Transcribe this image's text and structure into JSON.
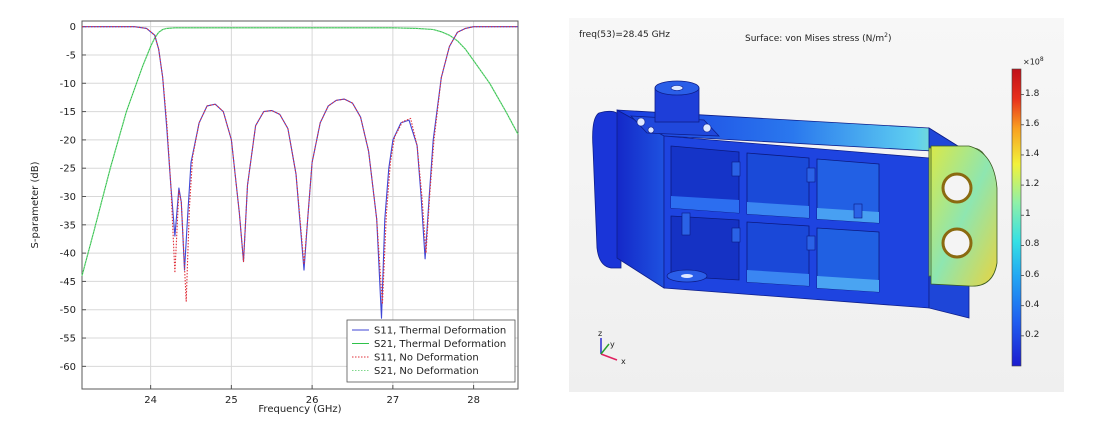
{
  "chart_data": {
    "type": "line",
    "title": "",
    "xlabel": "Frequency (GHz)",
    "ylabel": "S-parameter (dB)",
    "xlim": [
      23.15,
      28.55
    ],
    "ylim": [
      -64,
      1
    ],
    "xticks": [
      24,
      25,
      26,
      27,
      28
    ],
    "yticks": [
      0,
      -5,
      -10,
      -15,
      -20,
      -25,
      -30,
      -35,
      -40,
      -45,
      -50,
      -55,
      -60
    ],
    "xtick_labels": [
      "24",
      "25",
      "26",
      "27",
      "28"
    ],
    "ytick_labels": [
      "0",
      "-5",
      "-10",
      "-15",
      "-20",
      "-25",
      "-30",
      "-35",
      "-40",
      "-45",
      "-50",
      "-55",
      "-60"
    ],
    "grid": true,
    "legend_position": "bottom-right",
    "series": [
      {
        "name": "S11, Thermal Deformation",
        "color": "#3f46d6",
        "style": "solid",
        "x": [
          23.15,
          23.8,
          23.95,
          24.05,
          24.1,
          24.15,
          24.2,
          24.25,
          24.3,
          24.35,
          24.38,
          24.42,
          24.46,
          24.5,
          24.6,
          24.7,
          24.8,
          24.9,
          25.0,
          25.1,
          25.15,
          25.2,
          25.3,
          25.4,
          25.5,
          25.6,
          25.7,
          25.8,
          25.9,
          25.95,
          26.0,
          26.1,
          26.2,
          26.3,
          26.4,
          26.5,
          26.6,
          26.7,
          26.8,
          26.86,
          26.9,
          26.95,
          27.0,
          27.1,
          27.2,
          27.3,
          27.35,
          27.4,
          27.45,
          27.5,
          27.6,
          27.7,
          27.8,
          27.9,
          28.0,
          28.2,
          28.55
        ],
        "y": [
          0,
          0,
          -0.3,
          -1.5,
          -4,
          -9,
          -18,
          -28,
          -37,
          -28.5,
          -31,
          -43,
          -33,
          -24,
          -17,
          -14,
          -13.7,
          -15,
          -20,
          -33,
          -41.5,
          -28,
          -17.5,
          -15,
          -14.8,
          -15.5,
          -18,
          -26,
          -43,
          -33,
          -24,
          -17,
          -14,
          -13,
          -12.8,
          -13.5,
          -16,
          -22,
          -34,
          -51.5,
          -34,
          -25,
          -20,
          -17,
          -16.5,
          -21,
          -30,
          -41,
          -30,
          -20,
          -9,
          -3.5,
          -1,
          -0.3,
          0,
          0,
          0
        ]
      },
      {
        "name": "S21, Thermal Deformation",
        "color": "#2ec24a",
        "style": "solid",
        "x": [
          23.15,
          23.3,
          23.5,
          23.7,
          23.9,
          24.0,
          24.05,
          24.1,
          24.15,
          24.2,
          24.3,
          24.5,
          25.0,
          25.5,
          26.0,
          26.5,
          27.0,
          27.3,
          27.5,
          27.6,
          27.7,
          27.8,
          27.9,
          28.0,
          28.2,
          28.4,
          28.55
        ],
        "y": [
          -44,
          -36,
          -25,
          -15,
          -7,
          -3.5,
          -2,
          -1,
          -0.5,
          -0.3,
          -0.2,
          -0.2,
          -0.2,
          -0.2,
          -0.2,
          -0.2,
          -0.2,
          -0.3,
          -0.5,
          -0.9,
          -1.5,
          -2.5,
          -4,
          -6,
          -10,
          -15,
          -19
        ]
      },
      {
        "name": "S11, No Deformation",
        "color": "#e0303a",
        "style": "dotted",
        "x": [
          23.15,
          23.8,
          23.95,
          24.05,
          24.1,
          24.15,
          24.2,
          24.25,
          24.3,
          24.35,
          24.38,
          24.44,
          24.48,
          24.52,
          24.6,
          24.7,
          24.8,
          24.9,
          25.0,
          25.1,
          25.15,
          25.2,
          25.3,
          25.4,
          25.5,
          25.6,
          25.7,
          25.8,
          25.9,
          25.95,
          26.0,
          26.1,
          26.2,
          26.3,
          26.4,
          26.5,
          26.6,
          26.7,
          26.8,
          26.87,
          26.92,
          26.97,
          27.02,
          27.12,
          27.22,
          27.3,
          27.36,
          27.41,
          27.46,
          27.51,
          27.6,
          27.7,
          27.8,
          27.9,
          28.0,
          28.2,
          28.55
        ],
        "y": [
          0,
          0,
          -0.3,
          -1.5,
          -4,
          -9,
          -17,
          -28,
          -43.5,
          -29,
          -31,
          -48.5,
          -32,
          -23,
          -17,
          -14,
          -13.7,
          -15,
          -20,
          -33,
          -41.5,
          -28,
          -17.5,
          -15,
          -14.8,
          -15.5,
          -18,
          -26,
          -42,
          -33,
          -24,
          -17,
          -14,
          -13,
          -12.8,
          -13.5,
          -16,
          -22,
          -34,
          -49,
          -33,
          -24,
          -19.5,
          -16.8,
          -16.2,
          -21,
          -30,
          -40,
          -29,
          -20,
          -9,
          -3.5,
          -1,
          -0.3,
          0,
          0,
          0
        ]
      },
      {
        "name": "S21, No Deformation",
        "color": "#7fd88c",
        "style": "dotted",
        "x": [
          23.15,
          23.3,
          23.5,
          23.7,
          23.9,
          24.0,
          24.05,
          24.1,
          24.15,
          24.2,
          24.3,
          24.5,
          25.0,
          25.5,
          26.0,
          26.5,
          27.0,
          27.3,
          27.5,
          27.6,
          27.7,
          27.8,
          27.9,
          28.0,
          28.2,
          28.4,
          28.55
        ],
        "y": [
          -44,
          -36,
          -25,
          -15,
          -7,
          -3.5,
          -2,
          -1,
          -0.5,
          -0.3,
          -0.2,
          -0.2,
          -0.2,
          -0.2,
          -0.2,
          -0.2,
          -0.2,
          -0.3,
          -0.5,
          -0.9,
          -1.5,
          -2.5,
          -4,
          -6,
          -10,
          -15,
          -19
        ]
      }
    ]
  },
  "simulation": {
    "freq_label": "freq(53)=28.45 GHz",
    "surface_title": "Surface: von Mises stress (N/m",
    "surface_title_sup": "2",
    "surface_title_end": ")",
    "colorbar_multiplier": "×10",
    "colorbar_exponent": "8",
    "colorbar_ticks": [
      "1.8",
      "1.6",
      "1.4",
      "1.2",
      "1",
      "0.8",
      "0.6",
      "0.4",
      "0.2"
    ],
    "colorbar_tick_values": [
      1.8,
      1.6,
      1.4,
      1.2,
      1.0,
      0.8,
      0.6,
      0.4,
      0.2
    ],
    "colorbar_range": [
      0,
      1.97
    ],
    "axis_labels": {
      "z": "z",
      "y": "y",
      "x": "x"
    },
    "colormap": [
      "#1c1ccf",
      "#1f5ef0",
      "#22a6f3",
      "#35e0e4",
      "#8ff0a8",
      "#f2f23a",
      "#f9a020",
      "#e8301c",
      "#c0101a"
    ]
  }
}
